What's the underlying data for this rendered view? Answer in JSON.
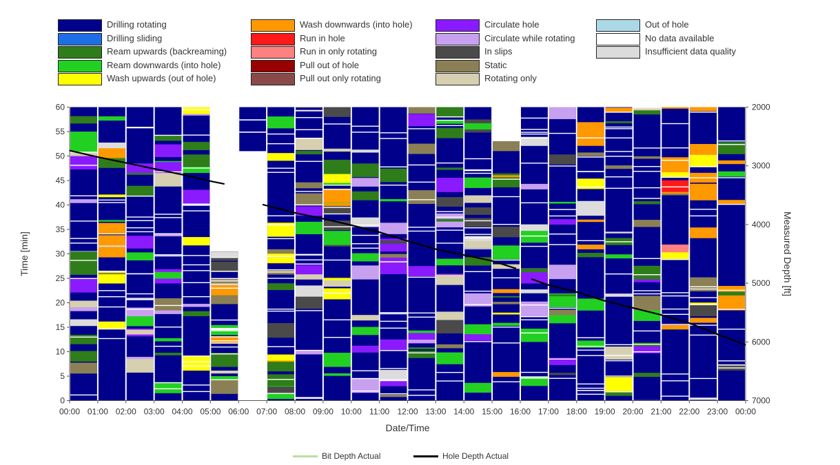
{
  "legend": {
    "columns": [
      [
        {
          "label": "Drilling rotating",
          "color": "#00008b"
        },
        {
          "label": "Drilling sliding",
          "color": "#1e6fe6"
        },
        {
          "label": "Ream upwards (backreaming)",
          "color": "#2e7d1a"
        },
        {
          "label": "Ream downwards (into hole)",
          "color": "#22d022"
        },
        {
          "label": "Wash upwards (out of hole)",
          "color": "#ffff00"
        }
      ],
      [
        {
          "label": "Wash downwards (into hole)",
          "color": "#ff9900"
        },
        {
          "label": "Run in hole",
          "color": "#ff1a1a"
        },
        {
          "label": "Run in only rotating",
          "color": "#ff8080"
        },
        {
          "label": "Pull out of hole",
          "color": "#990000"
        },
        {
          "label": "Pull out only rotating",
          "color": "#8b4a4a"
        }
      ],
      [
        {
          "label": "Circulate hole",
          "color": "#8a1aff"
        },
        {
          "label": "Circulate while rotating",
          "color": "#c8a0f0"
        },
        {
          "label": "In slips",
          "color": "#4a4a4a"
        },
        {
          "label": "Static",
          "color": "#8b8055"
        },
        {
          "label": "Rotating only",
          "color": "#d6d0b0"
        }
      ],
      [
        {
          "label": "Out of hole",
          "color": "#add8e6"
        },
        {
          "label": "No data available",
          "color": "#ffffff"
        },
        {
          "label": "Insufficient data quality",
          "color": "#dcdcdc"
        }
      ]
    ]
  },
  "chart_data": {
    "type": "heatmap",
    "xlabel": "Date/Time",
    "ylabel": "Time [min]",
    "y2label": "Measured Depth [ft]",
    "x_ticks": [
      "00:00",
      "01:00",
      "02:00",
      "03:00",
      "04:00",
      "05:00",
      "06:00",
      "07:00",
      "08:00",
      "09:00",
      "10:00",
      "11:00",
      "12:00",
      "13:00",
      "14:00",
      "15:00",
      "16:00",
      "17:00",
      "18:00",
      "19:00",
      "20:00",
      "21:00",
      "22:00",
      "23:00",
      "00:00"
    ],
    "y_ticks": [
      0,
      5,
      10,
      15,
      20,
      25,
      30,
      35,
      40,
      45,
      50,
      55,
      60
    ],
    "y_range": [
      0,
      60
    ],
    "y2_ticks": [
      2000,
      3000,
      4000,
      5000,
      6000,
      7000
    ],
    "y2_range": [
      2000,
      7000
    ],
    "y2_inverted": true,
    "hours": 24,
    "dominant_activity": "Drilling rotating",
    "columns": [
      {
        "hour": "00:00",
        "top_min": 60,
        "mix": "green,gray,purple"
      },
      {
        "hour": "01:00",
        "top_min": 60,
        "mix": "gray,green,yellow"
      },
      {
        "hour": "02:00",
        "top_min": 60,
        "mix": "green,gray,purple"
      },
      {
        "hour": "03:00",
        "top_min": 60,
        "mix": "green,gray,purple"
      },
      {
        "hour": "04:00",
        "top_min": 60,
        "mix": "green,purple,orange"
      },
      {
        "hour": "05:00",
        "top_min": 30.5,
        "mix": "gray,orange,green"
      },
      {
        "hour": "06:00",
        "top_min": 60,
        "mix": "none",
        "no_data_below": 51
      },
      {
        "hour": "07:00",
        "top_min": 60,
        "mix": "green,gray,orange"
      },
      {
        "hour": "08:00",
        "top_min": 60,
        "mix": "gray,purple,green"
      },
      {
        "hour": "09:00",
        "top_min": 60,
        "mix": "green,gray,orange"
      },
      {
        "hour": "10:00",
        "top_min": 60,
        "mix": "green,gray,purple"
      },
      {
        "hour": "11:00",
        "top_min": 60,
        "mix": "gray,green,purple"
      },
      {
        "hour": "12:00",
        "top_min": 60,
        "mix": "gray,green,purple"
      },
      {
        "hour": "13:00",
        "top_min": 60,
        "mix": "gray,green,purple"
      },
      {
        "hour": "14:00",
        "top_min": 60,
        "mix": "green,gray,purple"
      },
      {
        "hour": "15:00",
        "top_min": 53,
        "mix": "gray,green,orange"
      },
      {
        "hour": "16:00",
        "top_min": 60,
        "mix": "gray,green,purple"
      },
      {
        "hour": "17:00",
        "top_min": 60,
        "mix": "gray,green,purple"
      },
      {
        "hour": "18:00",
        "top_min": 60,
        "mix": "gray,green,orange"
      },
      {
        "hour": "19:00",
        "top_min": 60,
        "mix": "gray,green,orange"
      },
      {
        "hour": "20:00",
        "top_min": 60,
        "mix": "gray,purple,green"
      },
      {
        "hour": "21:00",
        "top_min": 60,
        "mix": "gray,red,orange"
      },
      {
        "hour": "22:00",
        "top_min": 60,
        "mix": "gray,orange,yellow"
      },
      {
        "hour": "23:00",
        "top_min": 60,
        "mix": "gray,green,orange"
      }
    ],
    "series": [
      {
        "name": "Hole Depth Actual",
        "color": "#000000",
        "points": [
          {
            "t": 0.0,
            "depth": 2740
          },
          {
            "t": 1.0,
            "depth": 2850
          },
          {
            "t": 2.0,
            "depth": 2950
          },
          {
            "t": 3.0,
            "depth": 3050
          },
          {
            "t": 4.0,
            "depth": 3150
          },
          {
            "t": 5.0,
            "depth": 3260
          },
          {
            "t": 5.5,
            "depth": 3310
          }
        ]
      },
      {
        "name": "Hole Depth Actual",
        "color": "#000000",
        "points": [
          {
            "t": 6.85,
            "depth": 3660
          },
          {
            "t": 8.0,
            "depth": 3800
          },
          {
            "t": 9.0,
            "depth": 3900
          },
          {
            "t": 10.0,
            "depth": 4010
          },
          {
            "t": 11.0,
            "depth": 4130
          },
          {
            "t": 12.0,
            "depth": 4280
          },
          {
            "t": 13.0,
            "depth": 4420
          },
          {
            "t": 14.0,
            "depth": 4520
          },
          {
            "t": 15.0,
            "depth": 4620
          },
          {
            "t": 15.85,
            "depth": 4750
          }
        ]
      },
      {
        "name": "Hole Depth Actual",
        "color": "#000000",
        "points": [
          {
            "t": 16.4,
            "depth": 4930
          },
          {
            "t": 17.0,
            "depth": 5030
          },
          {
            "t": 18.0,
            "depth": 5150
          },
          {
            "t": 19.0,
            "depth": 5300
          },
          {
            "t": 20.0,
            "depth": 5420
          },
          {
            "t": 21.0,
            "depth": 5540
          },
          {
            "t": 22.0,
            "depth": 5680
          },
          {
            "t": 23.0,
            "depth": 5870
          },
          {
            "t": 24.0,
            "depth": 6050
          }
        ]
      }
    ],
    "bottom_legend": [
      {
        "label": "Bit Depth Actual",
        "color": "#b8e0a0"
      },
      {
        "label": "Hole Depth Actual",
        "color": "#000000"
      }
    ]
  }
}
